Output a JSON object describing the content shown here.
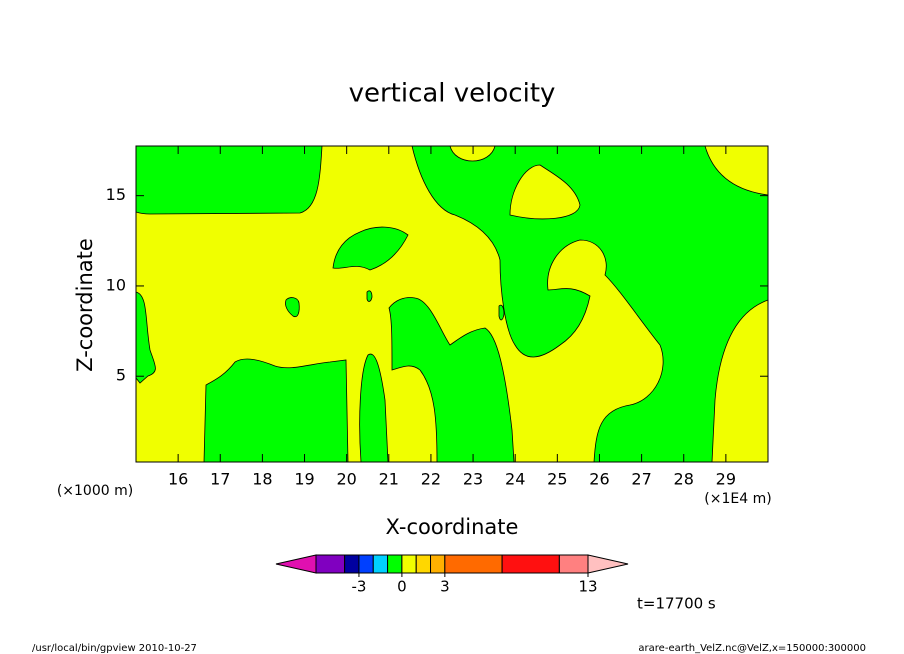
{
  "chart_data": {
    "type": "contour",
    "title": "vertical velocity",
    "xlabel": "X-coordinate",
    "ylabel": "Z-coordinate",
    "xunit": "(×1E4 m)",
    "yunit": "(×1000 m)",
    "xlim": [
      15,
      30
    ],
    "xticks": [
      16,
      17,
      18,
      19,
      20,
      21,
      22,
      23,
      24,
      25,
      26,
      27,
      28,
      29
    ],
    "ylim": [
      0.25,
      17.75
    ],
    "yticks": [
      5,
      10,
      15
    ],
    "colorbar": {
      "bounds": [
        -6,
        -4,
        -3,
        -2,
        -1,
        0,
        1,
        2,
        3,
        7,
        11,
        13
      ],
      "colors": [
        "#e010b0",
        "#8000c0",
        "#0000a0",
        "#0040ff",
        "#00d0ff",
        "#00ff00",
        "#f0ff00",
        "#ffd700",
        "#ffb000",
        "#ff6a00",
        "#ff1010",
        "#ff8080",
        "#ffc0c0"
      ],
      "ticks": [
        -3,
        0,
        3,
        13
      ]
    },
    "time_label": "t=17700 s",
    "footer_left": "/usr/local/bin/gpview  2010-10-27",
    "footer_right": "arare-earth_VelZ.nc@VelZ,x=150000:300000"
  }
}
